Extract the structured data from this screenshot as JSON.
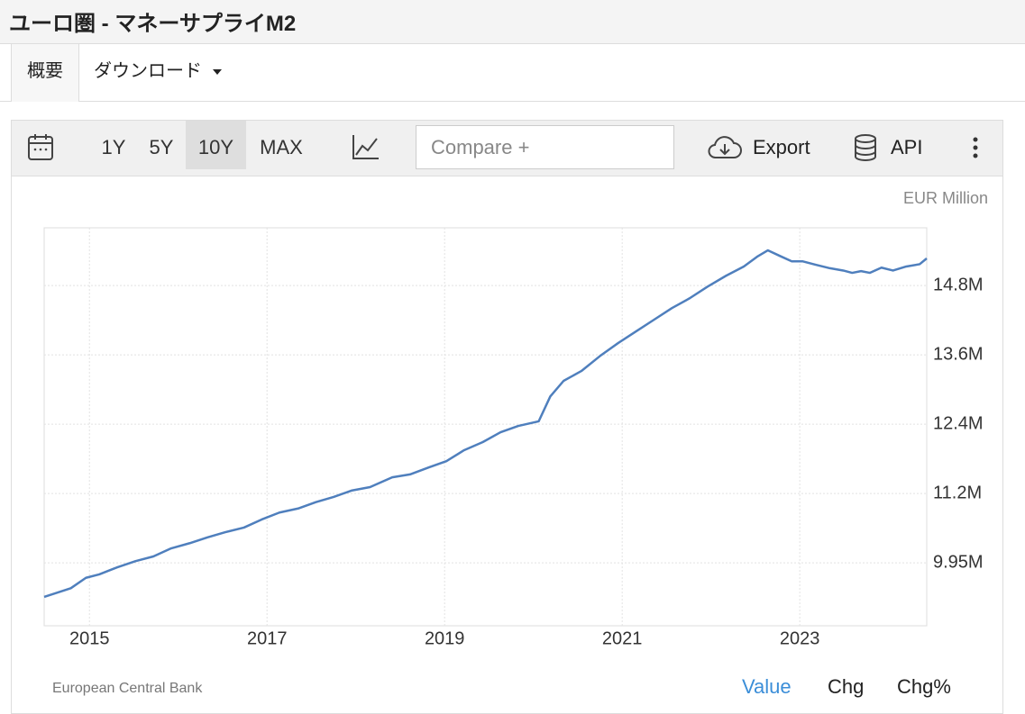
{
  "header": {
    "title": "ユーロ圏 - マネーサプライM2"
  },
  "tabs": [
    "概要",
    "ダウンロード"
  ],
  "toolbar": {
    "ranges": [
      "1Y",
      "5Y",
      "10Y",
      "MAX"
    ],
    "active_range": "10Y",
    "compare": "Compare +",
    "export": "Export",
    "api": "API"
  },
  "footer": {
    "source": "European Central Bank",
    "views": [
      "Value",
      "Chg",
      "Chg%"
    ],
    "active_view": "Value"
  },
  "chart_data": {
    "type": "line",
    "unit": "EUR Million",
    "color": "#4f7fbd",
    "grid": true,
    "x": [
      2014.49,
      2014.65,
      2014.79,
      2014.96,
      2015.11,
      2015.31,
      2015.52,
      2015.72,
      2015.92,
      2016.13,
      2016.33,
      2016.53,
      2016.74,
      2016.94,
      2017.14,
      2017.35,
      2017.55,
      2017.75,
      2017.95,
      2018.16,
      2018.41,
      2018.61,
      2018.82,
      2019.02,
      2019.22,
      2019.43,
      2019.63,
      2019.83,
      2020.06,
      2020.19,
      2020.34,
      2020.54,
      2020.75,
      2020.95,
      2021.15,
      2021.36,
      2021.56,
      2021.76,
      2021.96,
      2022.17,
      2022.37,
      2022.52,
      2022.64,
      2022.78,
      2022.91,
      2023.03,
      2023.18,
      2023.34,
      2023.49,
      2023.59,
      2023.69,
      2023.79,
      2023.92,
      2024.05,
      2024.2,
      2024.35,
      2024.43
    ],
    "values": [
      9360000,
      9440000,
      9510000,
      9690000,
      9750000,
      9870000,
      9980000,
      10060000,
      10200000,
      10290000,
      10390000,
      10480000,
      10560000,
      10700000,
      10820000,
      10890000,
      11000000,
      11090000,
      11200000,
      11260000,
      11430000,
      11480000,
      11600000,
      11710000,
      11900000,
      12040000,
      12210000,
      12320000,
      12400000,
      12830000,
      13100000,
      13270000,
      13530000,
      13750000,
      13950000,
      14160000,
      14360000,
      14530000,
      14730000,
      14920000,
      15080000,
      15250000,
      15360000,
      15260000,
      15170000,
      15170000,
      15110000,
      15050000,
      15010000,
      14970000,
      15000000,
      14970000,
      15060000,
      15010000,
      15080000,
      15120000,
      15220000
    ],
    "xlim": [
      2014.49,
      2024.43
    ],
    "xticks": [
      2015,
      2017,
      2019,
      2021,
      2023
    ],
    "ylim": [
      8860000,
      15750000
    ],
    "yticks": [
      {
        "value": 9950000,
        "label": "9.95M"
      },
      {
        "value": 11150000,
        "label": "11.2M"
      },
      {
        "value": 12350000,
        "label": "12.4M"
      },
      {
        "value": 13550000,
        "label": "13.6M"
      },
      {
        "value": 14750000,
        "label": "14.8M"
      }
    ]
  }
}
